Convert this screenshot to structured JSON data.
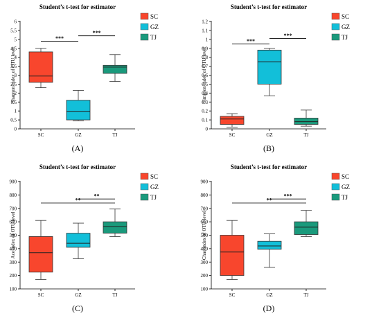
{
  "colors": {
    "SC": "#f8462d",
    "GZ": "#12bfd9",
    "TJ": "#1a9a7c"
  },
  "legend": [
    "SC",
    "GZ",
    "TJ"
  ],
  "chart_data": [
    {
      "type": "boxplot",
      "caption": "(A)",
      "title": "Student’s t-test for estimator",
      "ylabel": "Shannon index of OTU level",
      "categories": [
        "SC",
        "GZ",
        "TJ"
      ],
      "ylim": [
        0,
        6
      ],
      "yticks": [
        0,
        0.5,
        1,
        1.5,
        2,
        2.5,
        3,
        3.5,
        4,
        4.5,
        5,
        5.5,
        6
      ],
      "ytick_labels": [
        "0",
        "0.5",
        "1",
        "1.5",
        "2",
        "2.5",
        "3",
        "3.5",
        "4",
        "4.5",
        "5",
        "5.5",
        "6"
      ],
      "boxes": [
        {
          "name": "SC",
          "min": 2.3,
          "q1": 2.6,
          "median": 2.95,
          "q3": 4.3,
          "max": 4.5
        },
        {
          "name": "GZ",
          "min": 0.45,
          "q1": 0.5,
          "median": 0.98,
          "q3": 1.6,
          "max": 2.15
        },
        {
          "name": "TJ",
          "min": 2.65,
          "q1": 3.1,
          "median": 3.45,
          "q3": 3.55,
          "max": 4.15
        }
      ],
      "significance": [
        {
          "from": 0,
          "to": 1,
          "label": "***",
          "y": 4.9
        },
        {
          "from": 1,
          "to": 2,
          "label": "***",
          "y": 5.2
        }
      ]
    },
    {
      "type": "boxplot",
      "caption": "(B)",
      "title": "Student’s t-test for estimator",
      "ylabel": "Simpson index of OTU level",
      "categories": [
        "SC",
        "GZ",
        "TJ"
      ],
      "ylim": [
        0,
        1.2
      ],
      "yticks": [
        0,
        0.1,
        0.2,
        0.3,
        0.4,
        0.5,
        0.6,
        0.7,
        0.8,
        0.9,
        1,
        1.1,
        1.2
      ],
      "ytick_labels": [
        "0",
        "0.1",
        "0.2",
        "0.3",
        "0.4",
        "0.5",
        "0.6",
        "0.7",
        "0.8",
        "0.9",
        "1",
        "1.1",
        "1.2"
      ],
      "boxes": [
        {
          "name": "SC",
          "min": 0.02,
          "q1": 0.05,
          "median": 0.11,
          "q3": 0.14,
          "max": 0.17
        },
        {
          "name": "GZ",
          "min": 0.37,
          "q1": 0.5,
          "median": 0.75,
          "q3": 0.88,
          "max": 0.9
        },
        {
          "name": "TJ",
          "min": 0.03,
          "q1": 0.05,
          "median": 0.08,
          "q3": 0.12,
          "max": 0.21
        }
      ],
      "significance": [
        {
          "from": 0,
          "to": 1,
          "label": "***",
          "y": 0.95
        },
        {
          "from": 1,
          "to": 2,
          "label": "***",
          "y": 1.01
        }
      ]
    },
    {
      "type": "boxplot",
      "caption": "(C)",
      "title": "Student’s t-test for estimator",
      "ylabel": "Ace index of OTU level",
      "categories": [
        "SC",
        "GZ",
        "TJ"
      ],
      "ylim": [
        100,
        900
      ],
      "yticks": [
        100,
        200,
        300,
        400,
        500,
        600,
        700,
        800,
        900
      ],
      "ytick_labels": [
        "100",
        "200",
        "300",
        "400",
        "500",
        "600",
        "700",
        "800",
        "900"
      ],
      "boxes": [
        {
          "name": "SC",
          "min": 170,
          "q1": 225,
          "median": 370,
          "q3": 490,
          "max": 610
        },
        {
          "name": "GZ",
          "min": 325,
          "q1": 410,
          "median": 440,
          "q3": 515,
          "max": 590
        },
        {
          "name": "TJ",
          "min": 490,
          "q1": 515,
          "median": 565,
          "q3": 600,
          "max": 695
        }
      ],
      "significance": [
        {
          "from": 0,
          "to": 2,
          "label": "**",
          "y": 740
        },
        {
          "from": 1,
          "to": 2,
          "label": "**",
          "y": 770
        }
      ]
    },
    {
      "type": "boxplot",
      "caption": "(D)",
      "title": "Student’s t-test for estimator",
      "ylabel": "Chao index of OTU level",
      "categories": [
        "SC",
        "GZ",
        "TJ"
      ],
      "ylim": [
        100,
        900
      ],
      "yticks": [
        100,
        200,
        300,
        400,
        500,
        600,
        700,
        800,
        900
      ],
      "ytick_labels": [
        "100",
        "200",
        "300",
        "400",
        "500",
        "600",
        "700",
        "800",
        "900"
      ],
      "boxes": [
        {
          "name": "SC",
          "min": 170,
          "q1": 200,
          "median": 375,
          "q3": 500,
          "max": 610
        },
        {
          "name": "GZ",
          "min": 260,
          "q1": 395,
          "median": 420,
          "q3": 455,
          "max": 510
        },
        {
          "name": "TJ",
          "min": 490,
          "q1": 505,
          "median": 560,
          "q3": 600,
          "max": 685
        }
      ],
      "significance": [
        {
          "from": 0,
          "to": 2,
          "label": "**",
          "y": 740
        },
        {
          "from": 1,
          "to": 2,
          "label": "***",
          "y": 770
        }
      ]
    }
  ]
}
